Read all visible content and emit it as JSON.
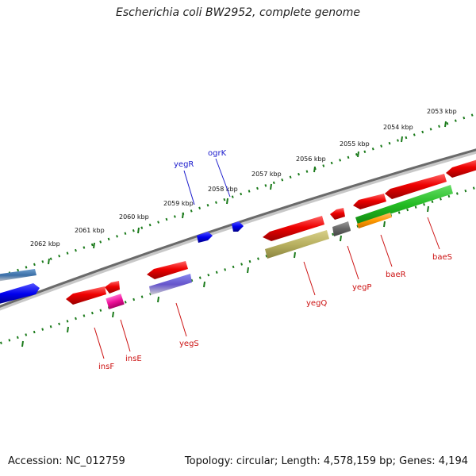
{
  "title": "Escherichia coli BW2952, complete genome",
  "footer": {
    "accession": "Accession: NC_012759",
    "topology": "Topology: circular; Length: 4,578,159 bp; Genes: 4,194"
  },
  "colors": {
    "backbone": "#777777",
    "tick": "#1a7a1a",
    "forward_label": "#1a1acc",
    "reverse_label": "#cc1111"
  },
  "scale_labels": [
    "2053 kbp",
    "2054 kbp",
    "2055 kbp",
    "2056 kbp",
    "2057 kbp",
    "2058 kbp",
    "2059 kbp",
    "2060 kbp",
    "2061 kbp",
    "2062 kbp"
  ],
  "gene_labels": [
    {
      "name": "yegR",
      "strand": "forward"
    },
    {
      "name": "ogrK",
      "strand": "forward"
    },
    {
      "name": "insF",
      "strand": "reverse"
    },
    {
      "name": "insE",
      "strand": "reverse"
    },
    {
      "name": "yegS",
      "strand": "reverse"
    },
    {
      "name": "yegQ",
      "strand": "reverse"
    },
    {
      "name": "yegP",
      "strand": "reverse"
    },
    {
      "name": "baeR",
      "strand": "reverse"
    },
    {
      "name": "baeS",
      "strand": "reverse"
    }
  ]
}
